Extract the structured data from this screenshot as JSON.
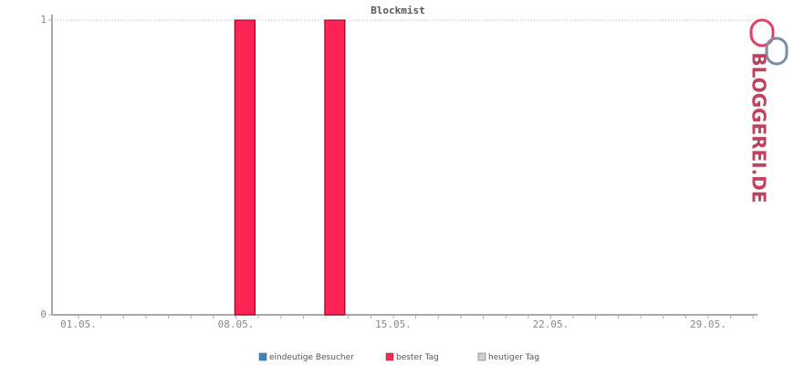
{
  "chart_data": {
    "type": "bar",
    "title": "Blockmist",
    "categories": [
      "01.05.",
      null,
      null,
      null,
      null,
      null,
      null,
      "08.05.",
      null,
      null,
      null,
      null,
      null,
      null,
      "15.05.",
      null,
      null,
      null,
      null,
      null,
      null,
      "22.05.",
      null,
      null,
      null,
      null,
      null,
      null,
      "29.05.",
      null,
      null
    ],
    "series": [
      {
        "name": "eindeutige Besucher",
        "color": "#3a87c0",
        "values": [
          0,
          0,
          0,
          0,
          0,
          0,
          0,
          1,
          0,
          0,
          0,
          1,
          0,
          0,
          0,
          0,
          0,
          0,
          0,
          0,
          0,
          0,
          0,
          0,
          0,
          0,
          0,
          0,
          0,
          0,
          0
        ]
      },
      {
        "name": "bester Tag",
        "color": "#ff2255",
        "values": [
          null,
          null,
          null,
          null,
          null,
          null,
          null,
          1,
          null,
          null,
          null,
          1,
          null,
          null,
          null,
          null,
          null,
          null,
          null,
          null,
          null,
          null,
          null,
          null,
          null,
          null,
          null,
          null,
          null,
          null,
          null
        ]
      },
      {
        "name": "heutiger Tag",
        "color": "#d0d0d0",
        "values": [
          null,
          null,
          null,
          null,
          null,
          null,
          null,
          null,
          null,
          null,
          null,
          null,
          null,
          null,
          null,
          null,
          null,
          null,
          null,
          null,
          null,
          null,
          null,
          null,
          null,
          null,
          null,
          null,
          null,
          null,
          null
        ]
      }
    ],
    "ylim": [
      0,
      1
    ],
    "yticks": [
      0,
      1
    ],
    "grid": true,
    "watermark": "BLOGGEREI.DE"
  }
}
